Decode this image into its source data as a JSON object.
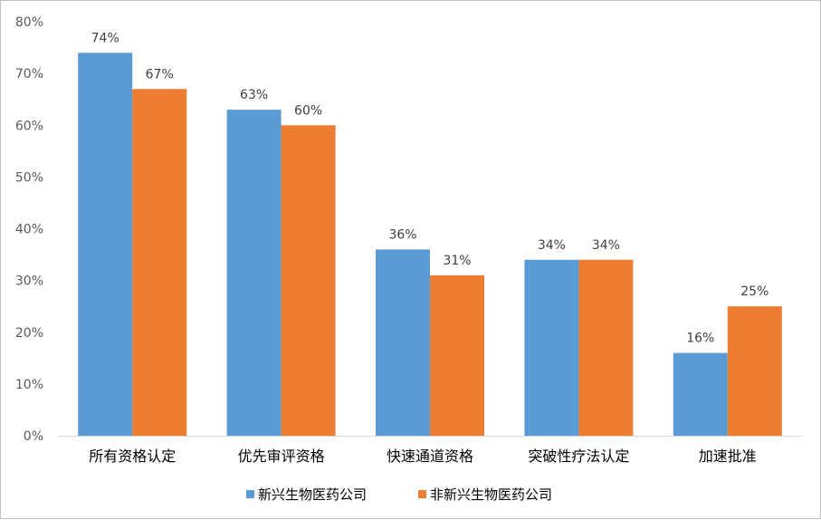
{
  "chart_data": {
    "type": "bar",
    "categories": [
      "所有资格认定",
      "优先审评资格",
      "快速通道资格",
      "突破性疗法认定",
      "加速批准"
    ],
    "series": [
      {
        "name": "新兴生物医药公司",
        "values": [
          74,
          63,
          36,
          34,
          16
        ],
        "color": "#5B9BD5"
      },
      {
        "name": "非新兴生物医药公司",
        "values": [
          67,
          60,
          31,
          34,
          25
        ],
        "color": "#ED7D31"
      }
    ],
    "value_format": "percent",
    "ylim": [
      0,
      80
    ],
    "yticks": [
      "0%",
      "10%",
      "20%",
      "30%",
      "40%",
      "50%",
      "60%",
      "70%",
      "80%"
    ],
    "grid": false,
    "legend": "bottom",
    "data_labels": true,
    "title": "",
    "xlabel": "",
    "ylabel": ""
  }
}
